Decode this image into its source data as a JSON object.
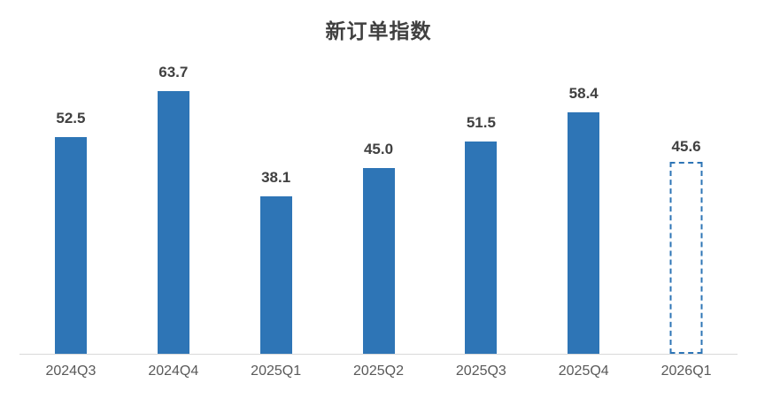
{
  "chart_data": {
    "type": "bar",
    "title": "新订单指数",
    "categories": [
      "2024Q3",
      "2024Q4",
      "2025Q1",
      "2025Q2",
      "2025Q3",
      "2025Q4",
      "2026Q1"
    ],
    "values": [
      52.5,
      63.7,
      38.1,
      45.0,
      51.5,
      58.4,
      45.6
    ],
    "value_labels": [
      "52.5",
      "63.7",
      "38.1",
      "45.0",
      "51.5",
      "58.4",
      "45.6"
    ],
    "dashed_outline_points": [
      "2026Q1"
    ],
    "xlabel": "",
    "ylabel": "",
    "ylim": [
      0,
      70
    ],
    "grid": false,
    "legend": "none",
    "colors": {
      "bar_fill": "#2E75B6",
      "forecast_bar_outline": "#2E75B6",
      "axis_line": "#D9D9D9",
      "title_text": "#404040",
      "data_label_text": "#404040",
      "tick_label_text": "#595959"
    }
  }
}
